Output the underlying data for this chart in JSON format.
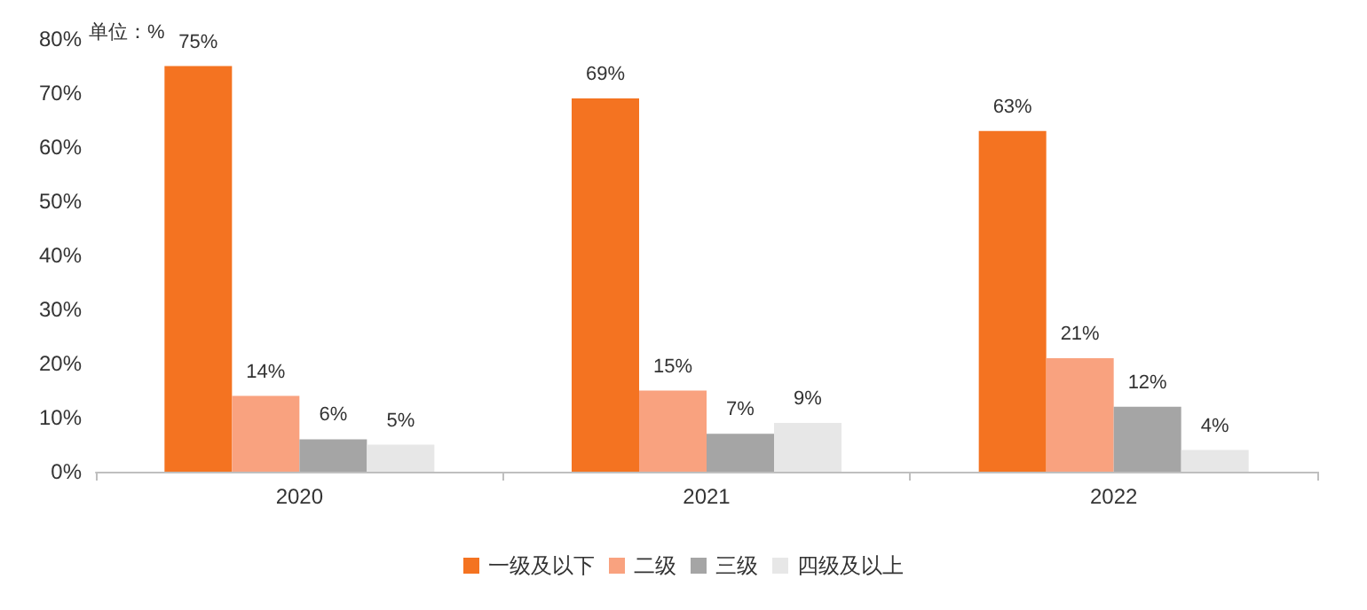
{
  "chart_data": {
    "type": "bar",
    "categories": [
      "2020",
      "2021",
      "2022"
    ],
    "series": [
      {
        "name": "一级及以下",
        "color": "#f47321",
        "values": [
          75,
          69,
          63
        ],
        "value_labels": [
          "75%",
          "69%",
          "63%"
        ]
      },
      {
        "name": "二级",
        "color": "#f9a27f",
        "values": [
          14,
          15,
          21
        ],
        "value_labels": [
          "14%",
          "15%",
          "21%"
        ]
      },
      {
        "name": "三级",
        "color": "#a5a5a5",
        "values": [
          6,
          7,
          12
        ],
        "value_labels": [
          "6%",
          "7%",
          "12%"
        ]
      },
      {
        "name": "四级及以上",
        "color": "#e7e7e7",
        "values": [
          5,
          9,
          4
        ],
        "value_labels": [
          "5%",
          "9%",
          "4%"
        ]
      }
    ],
    "ylim": [
      0,
      80
    ],
    "yticks": [
      {
        "value": 0,
        "label": "0%"
      },
      {
        "value": 10,
        "label": "10%"
      },
      {
        "value": 20,
        "label": "20%"
      },
      {
        "value": 30,
        "label": "30%"
      },
      {
        "value": 40,
        "label": "40%"
      },
      {
        "value": 50,
        "label": "50%"
      },
      {
        "value": 60,
        "label": "60%"
      },
      {
        "value": 70,
        "label": "70%"
      },
      {
        "value": 80,
        "label": "80%"
      }
    ],
    "annotations": [
      "单位：%"
    ],
    "grid": false,
    "legend": "bottom"
  }
}
